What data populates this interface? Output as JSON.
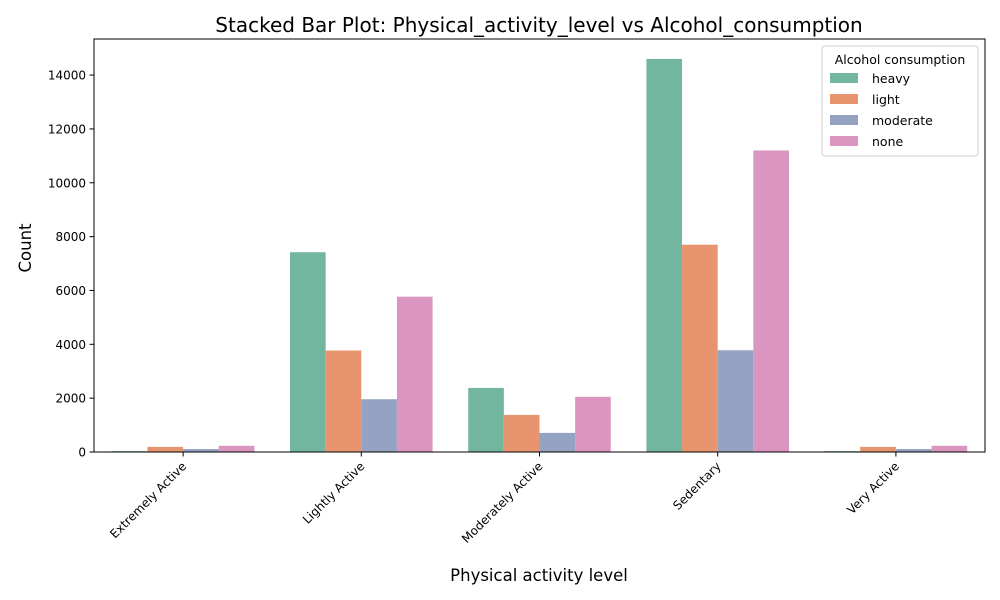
{
  "chart_data": {
    "type": "bar",
    "title": "Stacked Bar Plot: Physical_activity_level vs Alcohol_consumption",
    "xlabel": "Physical activity level",
    "ylabel": "Count",
    "categories": [
      "Extremely Active",
      "Lightly Active",
      "Moderately Active",
      "Sedentary",
      "Very Active"
    ],
    "series": [
      {
        "name": "heavy",
        "color": "#73b6a0",
        "values": [
          30,
          7420,
          2380,
          14600,
          30
        ]
      },
      {
        "name": "light",
        "color": "#e8956f",
        "values": [
          190,
          3770,
          1380,
          7700,
          190
        ]
      },
      {
        "name": "moderate",
        "color": "#94a3c2",
        "values": [
          110,
          1960,
          710,
          3780,
          110
        ]
      },
      {
        "name": "none",
        "color": "#da95c0",
        "values": [
          230,
          5770,
          2050,
          11200,
          230
        ]
      }
    ],
    "ylim": [
      0,
      15340
    ],
    "yticks": [
      0,
      2000,
      4000,
      6000,
      8000,
      10000,
      12000,
      14000
    ],
    "legend": {
      "title": "Alcohol consumption",
      "placement": "top-right"
    },
    "grid": false
  }
}
